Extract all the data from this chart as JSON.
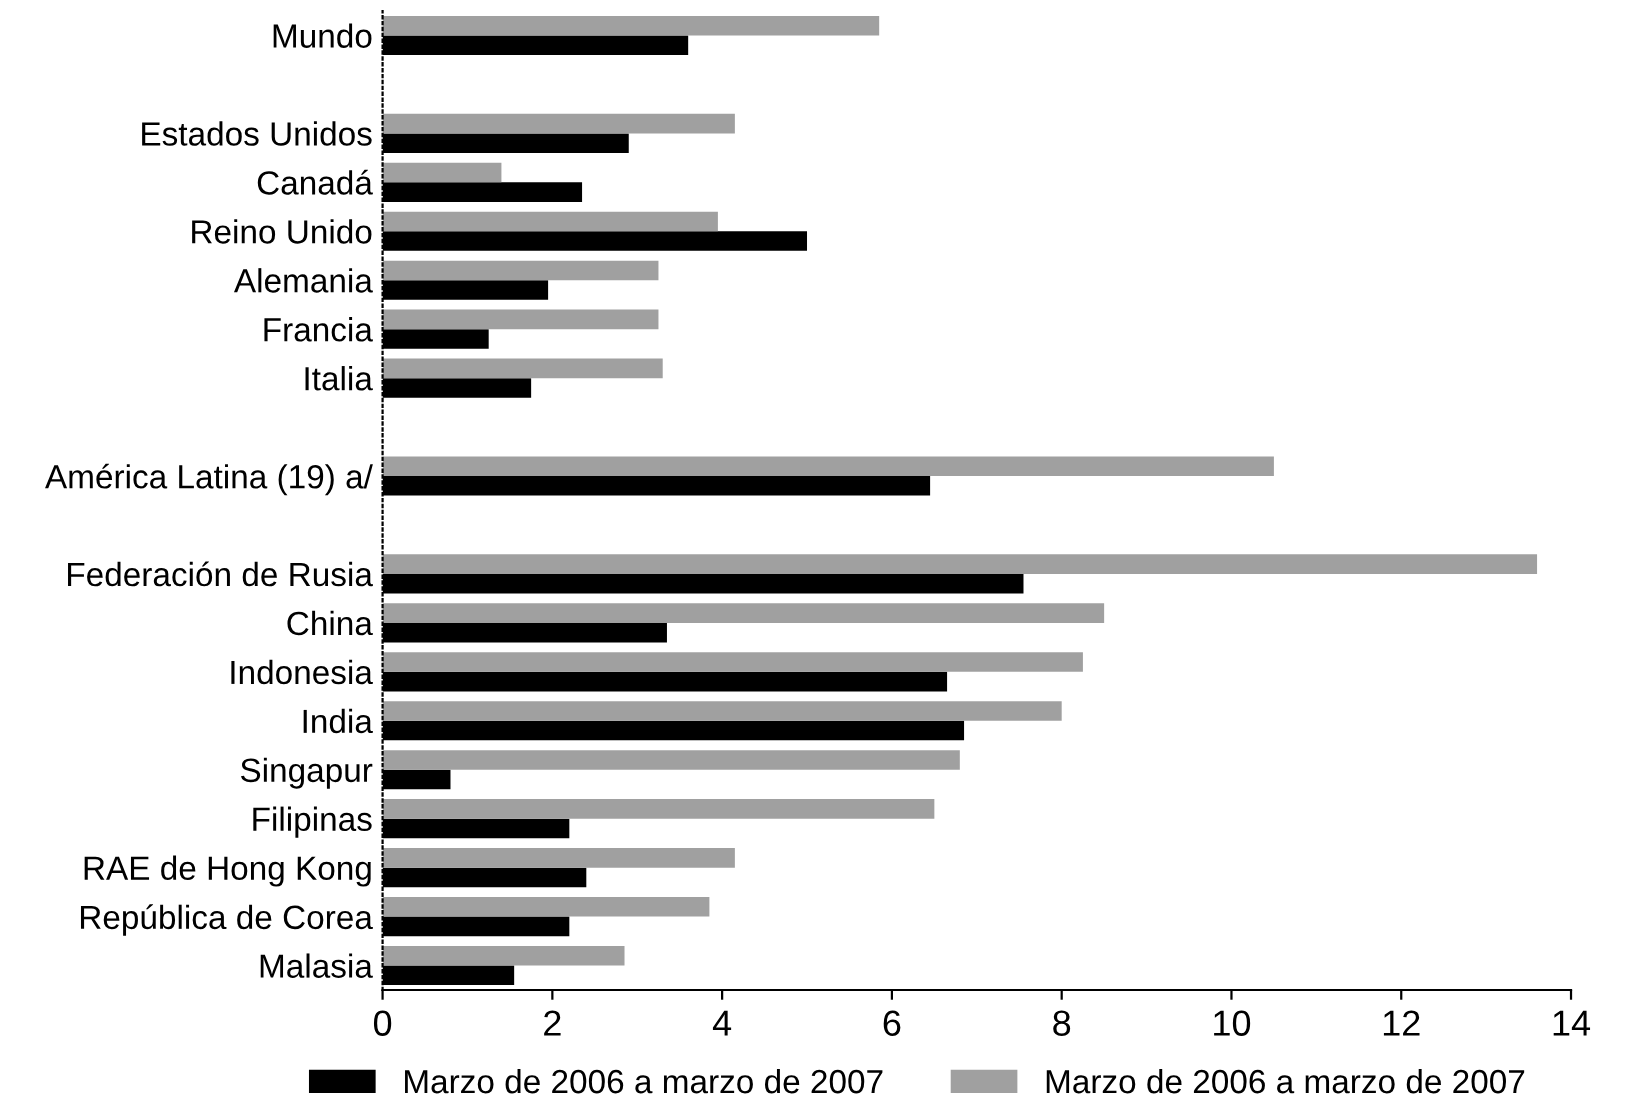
{
  "chart_data": {
    "type": "bar",
    "orientation": "horizontal",
    "categories": [
      "Mundo",
      null,
      "Estados Unidos",
      "Canadá",
      "Reino Unido",
      "Alemania",
      "Francia",
      "Italia",
      null,
      "América Latina (19) a/",
      null,
      "Federación de Rusia",
      "China",
      "Indonesia",
      "India",
      "Singapur",
      "Filipinas",
      "RAE de Hong Kong",
      "República de Corea",
      "Malasia"
    ],
    "series": [
      {
        "name": "Marzo de 2006 a marzo de 2007",
        "color": "#000000",
        "values": [
          3.6,
          null,
          2.9,
          2.35,
          5.0,
          1.95,
          1.25,
          1.75,
          null,
          6.45,
          null,
          7.55,
          3.35,
          6.65,
          6.85,
          0.8,
          2.2,
          2.4,
          2.2,
          1.55
        ]
      },
      {
        "name": "Marzo de 2006 a marzo de 2007",
        "color": "#a0a0a0",
        "values": [
          5.85,
          null,
          4.15,
          1.4,
          3.95,
          3.25,
          3.25,
          3.3,
          null,
          10.5,
          null,
          13.6,
          8.5,
          8.25,
          8.0,
          6.8,
          6.5,
          4.15,
          3.85,
          2.85
        ]
      }
    ],
    "xlim": [
      0,
      14
    ],
    "xticks": [
      0,
      2,
      4,
      6,
      8,
      10,
      12,
      14
    ],
    "grid": false,
    "legend": "bottom"
  }
}
